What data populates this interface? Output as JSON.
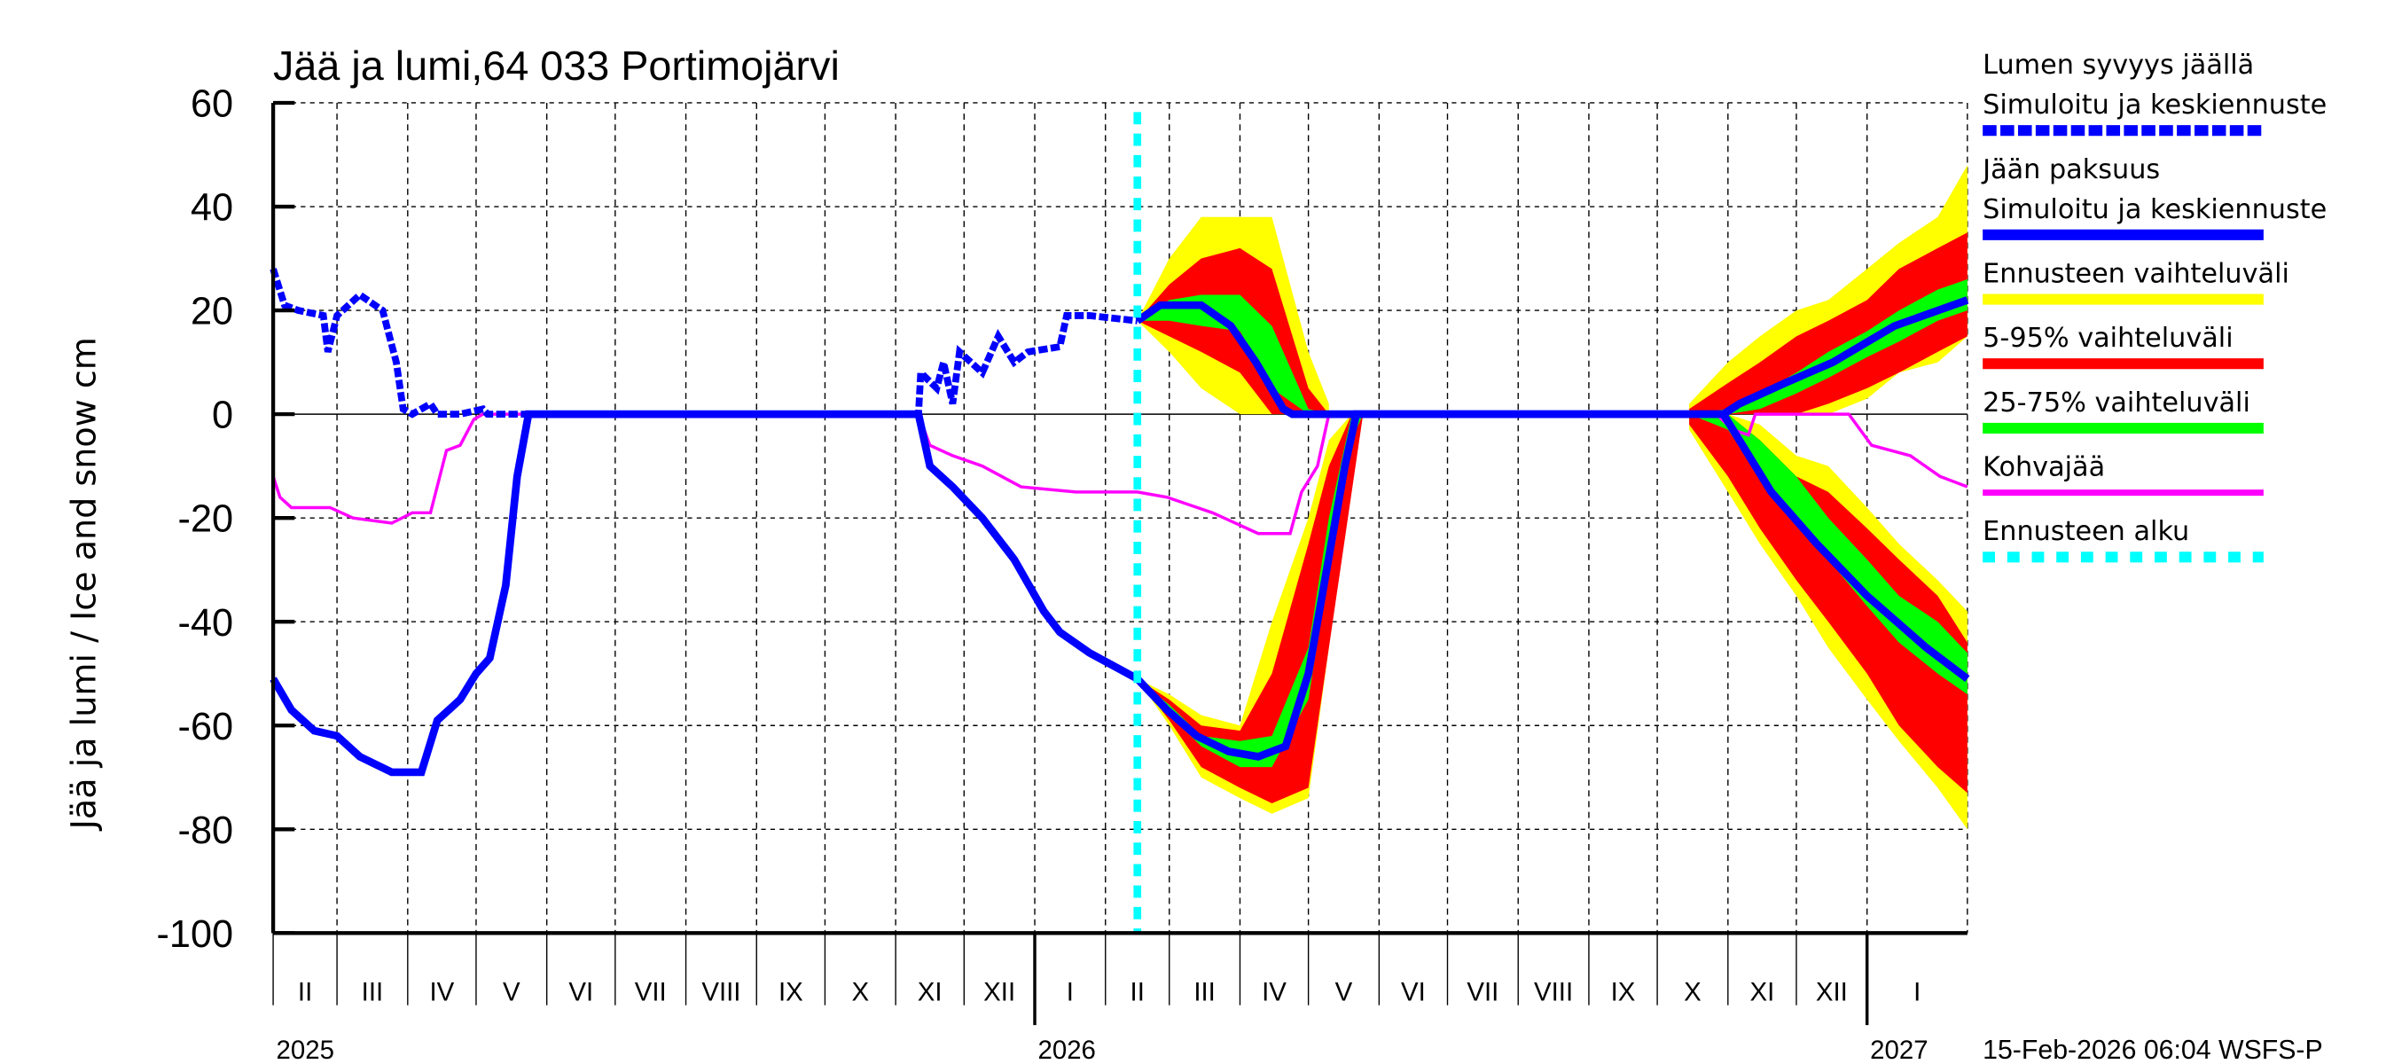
{
  "chart_data": {
    "type": "area",
    "title": "Jää ja lumi,64 033 Portimojärvi",
    "ylabel": "Jää ja lumi / Ice and snow    cm",
    "ylim": [
      -100,
      60
    ],
    "yticks": [
      60,
      40,
      20,
      0,
      -20,
      -40,
      -60,
      -80,
      -100
    ],
    "xlim": [
      "2025-02-01",
      "2027-02-14"
    ],
    "grid": true,
    "legend_position": "right",
    "month_labels": [
      "II",
      "III",
      "IV",
      "V",
      "VI",
      "VII",
      "VIII",
      "IX",
      "X",
      "XI",
      "XII",
      "I",
      "II",
      "III",
      "IV",
      "V",
      "VI",
      "VII",
      "VIII",
      "IX",
      "X",
      "XI",
      "XII",
      "I"
    ],
    "month_starts": [
      "2025-02-01",
      "2025-03-01",
      "2025-04-01",
      "2025-05-01",
      "2025-06-01",
      "2025-07-01",
      "2025-08-01",
      "2025-09-01",
      "2025-10-01",
      "2025-11-01",
      "2025-12-01",
      "2026-01-01",
      "2026-02-01",
      "2026-03-01",
      "2026-04-01",
      "2026-05-01",
      "2026-06-01",
      "2026-07-01",
      "2026-08-01",
      "2026-09-01",
      "2026-10-01",
      "2026-11-01",
      "2026-12-01",
      "2027-01-01"
    ],
    "year_labels": [
      {
        "label": "2025",
        "date": "2025-02-01"
      },
      {
        "label": "2026",
        "date": "2026-01-01"
      },
      {
        "label": "2027",
        "date": "2027-01-01"
      }
    ],
    "forecast_start": "2026-02-15",
    "timestamp": "15-Feb-2026 06:04 WSFS-P",
    "colors": {
      "snow": "#0000ff",
      "ice": "#0000ff",
      "range": "#ffff00",
      "p5_95": "#ff0000",
      "p25_75": "#00ff00",
      "slush": "#ff00ff",
      "forecast_start": "#00ffff"
    },
    "legend": [
      {
        "line1": "Lumen syvyys jäällä",
        "line2": "Simuloitu ja keskiennuste",
        "style": "snow"
      },
      {
        "line1": "Jään paksuus",
        "line2": "Simuloitu ja keskiennuste",
        "style": "ice"
      },
      {
        "line1": "Ennusteen vaihteluväli",
        "style": "range"
      },
      {
        "line1": "5-95% vaihteluväli",
        "style": "p5_95"
      },
      {
        "line1": "25-75% vaihteluväli",
        "style": "p25_75"
      },
      {
        "line1": "Kohvajää",
        "style": "slush"
      },
      {
        "line1": "Ennusteen alku",
        "style": "forecast_start"
      }
    ],
    "series": {
      "snow_simulated": [
        [
          "2025-02-01",
          28
        ],
        [
          "2025-02-06",
          21
        ],
        [
          "2025-02-12",
          20
        ],
        [
          "2025-02-23",
          19
        ],
        [
          "2025-02-25",
          12
        ],
        [
          "2025-03-01",
          19
        ],
        [
          "2025-03-11",
          23
        ],
        [
          "2025-03-21",
          20
        ],
        [
          "2025-03-27",
          10
        ],
        [
          "2025-03-30",
          1
        ],
        [
          "2025-04-03",
          0
        ],
        [
          "2025-04-11",
          2
        ],
        [
          "2025-04-14",
          0
        ],
        [
          "2025-04-24",
          0
        ],
        [
          "2025-05-04",
          1
        ],
        [
          "2025-05-06",
          0
        ],
        [
          "2025-11-11",
          0
        ],
        [
          "2025-11-12",
          8
        ],
        [
          "2025-11-19",
          5
        ],
        [
          "2025-11-22",
          10
        ],
        [
          "2025-11-26",
          2
        ],
        [
          "2025-11-29",
          12
        ],
        [
          "2025-12-09",
          8
        ],
        [
          "2025-12-16",
          15
        ],
        [
          "2025-12-23",
          10
        ],
        [
          "2025-12-29",
          12
        ],
        [
          "2026-01-12",
          13
        ],
        [
          "2026-01-15",
          19
        ],
        [
          "2026-01-25",
          19
        ],
        [
          "2026-02-15",
          18
        ]
      ],
      "snow_forecast_median": [
        [
          "2026-02-15",
          18
        ],
        [
          "2026-02-25",
          21
        ],
        [
          "2026-03-15",
          21
        ],
        [
          "2026-03-28",
          17
        ],
        [
          "2026-04-08",
          10
        ],
        [
          "2026-04-20",
          1
        ],
        [
          "2026-04-24",
          0
        ],
        [
          "2026-10-30",
          0
        ],
        [
          "2026-11-06",
          2
        ],
        [
          "2026-11-26",
          6
        ],
        [
          "2026-12-17",
          10
        ],
        [
          "2027-01-13",
          17
        ],
        [
          "2027-02-14",
          22
        ]
      ],
      "ice_simulated": [
        [
          "2025-02-01",
          -51
        ],
        [
          "2025-02-09",
          -57
        ],
        [
          "2025-02-19",
          -61
        ],
        [
          "2025-03-01",
          -62
        ],
        [
          "2025-03-11",
          -66
        ],
        [
          "2025-03-25",
          -69
        ],
        [
          "2025-04-07",
          -69
        ],
        [
          "2025-04-14",
          -59
        ],
        [
          "2025-04-24",
          -55
        ],
        [
          "2025-05-01",
          -50
        ],
        [
          "2025-05-07",
          -47
        ],
        [
          "2025-05-14",
          -33
        ],
        [
          "2025-05-19",
          -12
        ],
        [
          "2025-05-24",
          0
        ],
        [
          "2025-11-11",
          0
        ],
        [
          "2025-11-16",
          -10
        ],
        [
          "2025-11-26",
          -14
        ],
        [
          "2025-12-09",
          -20
        ],
        [
          "2025-12-23",
          -28
        ],
        [
          "2026-01-05",
          -38
        ],
        [
          "2026-01-12",
          -42
        ],
        [
          "2026-01-25",
          -46
        ],
        [
          "2026-02-15",
          -51
        ]
      ],
      "ice_forecast_median": [
        [
          "2026-02-15",
          -51
        ],
        [
          "2026-02-28",
          -57
        ],
        [
          "2026-03-13",
          -62
        ],
        [
          "2026-03-27",
          -65
        ],
        [
          "2026-04-09",
          -66
        ],
        [
          "2026-04-21",
          -64
        ],
        [
          "2026-05-01",
          -50
        ],
        [
          "2026-05-09",
          -30
        ],
        [
          "2026-05-17",
          -10
        ],
        [
          "2026-05-22",
          0
        ],
        [
          "2026-10-30",
          0
        ],
        [
          "2026-11-06",
          -5
        ],
        [
          "2026-11-20",
          -15
        ],
        [
          "2026-12-10",
          -25
        ],
        [
          "2027-01-01",
          -35
        ],
        [
          "2027-01-27",
          -45
        ],
        [
          "2027-02-14",
          -51
        ]
      ],
      "slush": [
        [
          "2025-02-01",
          -12
        ],
        [
          "2025-02-04",
          -16
        ],
        [
          "2025-02-09",
          -18
        ],
        [
          "2025-02-26",
          -18
        ],
        [
          "2025-03-08",
          -20
        ],
        [
          "2025-03-25",
          -21
        ],
        [
          "2025-04-03",
          -19
        ],
        [
          "2025-04-11",
          -19
        ],
        [
          "2025-04-18",
          -7
        ],
        [
          "2025-04-24",
          -6
        ],
        [
          "2025-04-30",
          -1
        ],
        [
          "2025-05-04",
          0
        ],
        [
          "2025-11-11",
          0
        ],
        [
          "2025-11-16",
          -6
        ],
        [
          "2025-11-26",
          -8
        ],
        [
          "2025-12-09",
          -10
        ],
        [
          "2025-12-26",
          -14
        ],
        [
          "2026-01-19",
          -15
        ],
        [
          "2026-02-15",
          -15
        ],
        [
          "2026-02-28",
          -16
        ],
        [
          "2026-03-20",
          -19
        ],
        [
          "2026-04-09",
          -23
        ],
        [
          "2026-04-23",
          -23
        ],
        [
          "2026-04-28",
          -15
        ],
        [
          "2026-05-05",
          -10
        ],
        [
          "2026-05-10",
          0
        ],
        [
          "2026-10-27",
          0
        ],
        [
          "2026-11-03",
          -3
        ],
        [
          "2026-11-10",
          -4
        ],
        [
          "2026-11-13",
          0
        ],
        [
          "2026-12-24",
          0
        ],
        [
          "2027-01-03",
          -6
        ],
        [
          "2027-01-20",
          -8
        ],
        [
          "2027-02-02",
          -12
        ],
        [
          "2027-02-14",
          -14
        ]
      ]
    },
    "bands": [
      {
        "part": "snow_spring",
        "rows": [
          [
            "2026-02-15",
            18,
            18,
            18,
            18,
            18,
            18
          ],
          [
            "2026-03-01",
            12,
            30,
            15,
            25,
            18,
            22
          ],
          [
            "2026-03-15",
            5,
            38,
            12,
            30,
            17,
            23
          ],
          [
            "2026-04-01",
            0,
            38,
            8,
            32,
            16,
            23
          ],
          [
            "2026-04-15",
            0,
            38,
            0,
            28,
            5,
            17
          ],
          [
            "2026-05-01",
            0,
            12,
            0,
            5,
            0,
            1
          ],
          [
            "2026-05-10",
            0,
            2,
            0,
            0,
            0,
            0
          ]
        ]
      },
      {
        "part": "ice_spring",
        "rows": [
          [
            "2026-02-15",
            -51,
            -51,
            -51,
            -51,
            -51,
            -51
          ],
          [
            "2026-03-01",
            -60,
            -54,
            -59,
            -55,
            -58,
            -56
          ],
          [
            "2026-03-15",
            -70,
            -58,
            -68,
            -60,
            -64,
            -62
          ],
          [
            "2026-04-01",
            -74,
            -60,
            -72,
            -61,
            -68,
            -63
          ],
          [
            "2026-04-15",
            -77,
            -40,
            -75,
            -50,
            -68,
            -62
          ],
          [
            "2026-05-01",
            -74,
            -20,
            -72,
            -25,
            -55,
            -45
          ],
          [
            "2026-05-10",
            -45,
            -5,
            -45,
            -10,
            -30,
            -20
          ],
          [
            "2026-05-20",
            -10,
            0,
            -15,
            0,
            -5,
            0
          ],
          [
            "2026-05-25",
            0,
            0,
            0,
            0,
            0,
            0
          ]
        ]
      },
      {
        "part": "snow_autumn",
        "rows": [
          [
            "2026-10-15",
            0,
            2,
            0,
            1,
            0,
            0
          ],
          [
            "2026-11-01",
            0,
            10,
            0,
            6,
            0,
            1
          ],
          [
            "2026-11-15",
            0,
            15,
            0,
            10,
            1,
            4
          ],
          [
            "2026-12-01",
            0,
            20,
            0,
            15,
            4,
            8
          ],
          [
            "2026-12-15",
            0,
            22,
            2,
            18,
            7,
            12
          ],
          [
            "2027-01-01",
            3,
            28,
            5,
            22,
            11,
            16
          ],
          [
            "2027-01-15",
            8,
            33,
            8,
            28,
            14,
            20
          ],
          [
            "2027-02-01",
            10,
            38,
            12,
            32,
            18,
            24
          ],
          [
            "2027-02-14",
            15,
            48,
            15,
            35,
            20,
            26
          ]
        ]
      },
      {
        "part": "ice_autumn",
        "rows": [
          [
            "2026-10-15",
            -3,
            0,
            -2,
            0,
            0,
            0
          ],
          [
            "2026-11-01",
            -15,
            0,
            -12,
            0,
            -3,
            0
          ],
          [
            "2026-11-15",
            -25,
            -2,
            -22,
            -5,
            -12,
            -5
          ],
          [
            "2026-12-01",
            -35,
            -8,
            -32,
            -12,
            -20,
            -12
          ],
          [
            "2026-12-15",
            -45,
            -10,
            -40,
            -15,
            -28,
            -20
          ],
          [
            "2027-01-01",
            -55,
            -18,
            -50,
            -22,
            -37,
            -28
          ],
          [
            "2027-01-15",
            -63,
            -25,
            -60,
            -28,
            -44,
            -35
          ],
          [
            "2027-02-01",
            -72,
            -32,
            -68,
            -35,
            -50,
            -40
          ],
          [
            "2027-02-14",
            -80,
            -38,
            -73,
            -44,
            -54,
            -46
          ]
        ]
      }
    ],
    "band_columns": [
      "date",
      "range_low",
      "range_high",
      "p5",
      "p95",
      "p25",
      "p75"
    ]
  }
}
